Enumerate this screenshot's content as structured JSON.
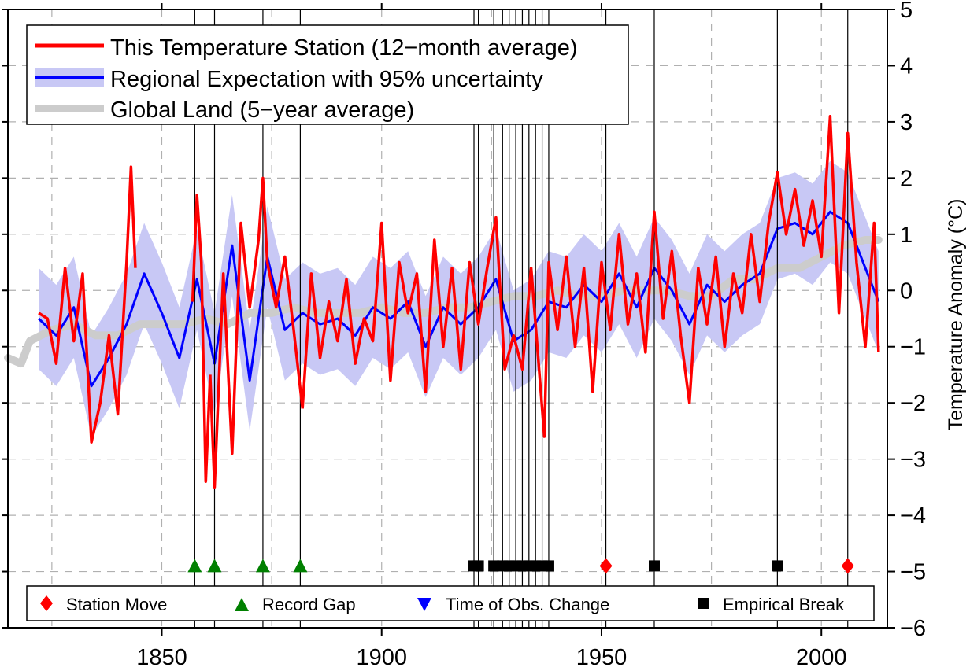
{
  "chart_data": {
    "type": "line",
    "title": "",
    "xlabel": "",
    "ylabel": "Temperature Anomaly (°C)",
    "xlim": [
      1815,
      2015
    ],
    "ylim": [
      -6,
      5
    ],
    "x_ticks": [
      1850,
      1900,
      1950,
      2000
    ],
    "y_ticks": [
      5,
      4,
      3,
      2,
      1,
      0,
      -1,
      -2,
      -3,
      -4,
      -5,
      -6
    ],
    "y_tick_labels": [
      "5",
      "4",
      "3",
      "2",
      "1",
      "0",
      "−1",
      "−2",
      "−3",
      "−4",
      "−5",
      "−6"
    ],
    "x_tick_labels": [
      "1850",
      "1900",
      "1950",
      "2000"
    ],
    "grid": true,
    "legend_top": {
      "placement": "top-left",
      "items": [
        {
          "label": "This Temperature Station (12−month average)",
          "color": "#ff0000"
        },
        {
          "label": "Regional Expectation with 95% uncertainty",
          "color": "#0000ff",
          "band_color": "#c8c8f5"
        },
        {
          "label": "Global Land (5−year average)",
          "color": "#cccccc"
        }
      ]
    },
    "legend_bottom": {
      "placement": "bottom",
      "items": [
        {
          "label": "Station Move",
          "marker": "diamond",
          "color": "#ff0000"
        },
        {
          "label": "Record Gap",
          "marker": "triangle-up",
          "color": "#008000"
        },
        {
          "label": "Time of Obs. Change",
          "marker": "triangle-down",
          "color": "#0000ff"
        },
        {
          "label": "Empirical Break",
          "marker": "square",
          "color": "#000000"
        }
      ]
    },
    "series": [
      {
        "name": "This Temperature Station (12−month average)",
        "color": "#ff0000",
        "segments": [
          {
            "x": [
              1822,
              1824,
              1826,
              1828,
              1830,
              1832,
              1834,
              1836,
              1838,
              1840,
              1842,
              1843,
              1844
            ],
            "y": [
              -0.4,
              -0.5,
              -1.3,
              0.4,
              -0.9,
              0.3,
              -2.7,
              -2.0,
              -0.8,
              -2.2,
              0.5,
              2.2,
              0.4
            ]
          },
          {
            "x": [
              1857,
              1858,
              1859,
              1860,
              1861
            ],
            "y": [
              -0.2,
              1.7,
              0.5,
              -3.4,
              -1.5
            ]
          },
          {
            "x": [
              1861,
              1862,
              1864,
              1866,
              1868,
              1870,
              1872,
              1873,
              1874,
              1876,
              1878,
              1880,
              1882
            ],
            "y": [
              -1.5,
              -3.5,
              0.3,
              -2.9,
              1.2,
              -0.3,
              0.9,
              2.0,
              0.5,
              -0.3,
              0.6,
              -0.7,
              -2.1
            ]
          },
          {
            "x": [
              1882,
              1884,
              1886,
              1888,
              1890,
              1892,
              1894,
              1896,
              1898,
              1900,
              1902,
              1904,
              1906,
              1908,
              1910,
              1912,
              1914,
              1916,
              1918,
              1920,
              1922,
              1924,
              1926,
              1928,
              1930,
              1932,
              1934,
              1936,
              1937,
              1938,
              1940,
              1942,
              1944,
              1946,
              1948,
              1950,
              1952,
              1954,
              1956,
              1958,
              1960,
              1962,
              1964,
              1966,
              1968,
              1970,
              1972,
              1974,
              1976,
              1978,
              1980,
              1982,
              1984,
              1986,
              1988,
              1990,
              1992,
              1994,
              1996,
              1998,
              2000,
              2002,
              2004,
              2006,
              2008,
              2010,
              2012,
              2013
            ],
            "y": [
              -2.1,
              0.3,
              -1.2,
              -0.2,
              -0.9,
              0.2,
              -1.3,
              -0.5,
              -0.9,
              1.2,
              -1.6,
              0.5,
              -0.4,
              0.3,
              -1.8,
              0.9,
              -1.0,
              0.4,
              -1.4,
              0.5,
              -0.6,
              0.4,
              1.3,
              -1.4,
              -0.8,
              -1.4,
              0.4,
              -1.6,
              -2.6,
              0.5,
              -0.7,
              0.6,
              -1.0,
              0.4,
              -1.8,
              0.5,
              -0.7,
              1.0,
              -0.6,
              0.3,
              -1.1,
              1.4,
              -0.5,
              0.7,
              -0.8,
              -2.0,
              0.4,
              -0.6,
              0.6,
              -1.0,
              0.3,
              -0.4,
              1.0,
              -0.2,
              1.2,
              2.1,
              1.0,
              1.8,
              0.8,
              1.6,
              0.6,
              3.1,
              -0.4,
              2.8,
              0.5,
              -1.0,
              1.2,
              -1.1
            ]
          }
        ]
      },
      {
        "name": "Regional Expectation with 95% uncertainty",
        "color": "#0000ff",
        "x": [
          1822,
          1826,
          1830,
          1834,
          1838,
          1842,
          1846,
          1850,
          1854,
          1858,
          1862,
          1866,
          1870,
          1874,
          1878,
          1882,
          1886,
          1890,
          1894,
          1898,
          1902,
          1906,
          1910,
          1914,
          1918,
          1922,
          1926,
          1930,
          1934,
          1938,
          1942,
          1946,
          1950,
          1954,
          1958,
          1962,
          1966,
          1970,
          1974,
          1978,
          1982,
          1986,
          1990,
          1994,
          1998,
          2002,
          2006,
          2010,
          2013
        ],
        "y": [
          -0.5,
          -0.8,
          -0.3,
          -1.7,
          -1.2,
          -0.6,
          0.3,
          -0.4,
          -1.2,
          0.2,
          -1.3,
          0.8,
          -1.6,
          0.6,
          -0.7,
          -0.4,
          -0.6,
          -0.5,
          -0.8,
          -0.3,
          -0.5,
          -0.2,
          -1.0,
          -0.3,
          -0.6,
          -0.3,
          0.2,
          -0.9,
          -0.7,
          -0.2,
          -0.3,
          0.1,
          -0.2,
          0.3,
          -0.3,
          0.4,
          0.0,
          -0.6,
          0.1,
          -0.2,
          0.1,
          0.3,
          1.1,
          1.2,
          1.0,
          1.4,
          1.2,
          0.4,
          -0.2
        ],
        "band_halfwidth": 0.9
      },
      {
        "name": "Global Land (5−year average)",
        "color": "#cccccc",
        "x": [
          1815,
          1818,
          1820,
          1825,
          1830,
          1835,
          1840,
          1845,
          1850,
          1855,
          1860,
          1865,
          1870,
          1875,
          1880,
          1885,
          1890,
          1895,
          1900,
          1905,
          1910,
          1915,
          1920,
          1925,
          1930,
          1935,
          1940,
          1945,
          1950,
          1955,
          1960,
          1965,
          1970,
          1975,
          1980,
          1985,
          1990,
          1995,
          2000,
          2005,
          2010,
          2013
        ],
        "y": [
          -1.2,
          -1.3,
          -0.9,
          -0.7,
          -0.6,
          -0.8,
          -0.8,
          -0.6,
          -0.6,
          -0.6,
          -0.5,
          -0.6,
          -0.4,
          -0.4,
          -0.3,
          -0.4,
          -0.4,
          -0.4,
          -0.3,
          -0.4,
          -0.4,
          -0.3,
          -0.3,
          -0.2,
          -0.1,
          -0.1,
          0.0,
          -0.1,
          -0.1,
          0.0,
          0.0,
          0.0,
          -0.1,
          -0.1,
          0.2,
          0.2,
          0.4,
          0.4,
          0.6,
          0.8,
          0.9,
          0.9
        ]
      }
    ],
    "vertical_lines_x": [
      1857.5,
      1862,
      1873,
      1881.5,
      1921,
      1922,
      1925.5,
      1927.5,
      1929,
      1930.5,
      1932,
      1933.5,
      1935,
      1936.5,
      1938,
      1951,
      1962,
      1990,
      2006
    ],
    "markers": [
      {
        "type": "triangle-up",
        "color": "#008000",
        "y": -4.9,
        "x": [
          1857.5,
          1862,
          1873,
          1881.5
        ]
      },
      {
        "type": "square",
        "color": "#000000",
        "y": -4.9,
        "x": [
          1921,
          1922,
          1925.5,
          1927.5,
          1929,
          1930.5,
          1932,
          1933.5,
          1935,
          1936.5,
          1938,
          1962,
          1990
        ]
      },
      {
        "type": "diamond",
        "color": "#ff0000",
        "y": -4.9,
        "x": [
          1951,
          2006
        ]
      }
    ]
  }
}
